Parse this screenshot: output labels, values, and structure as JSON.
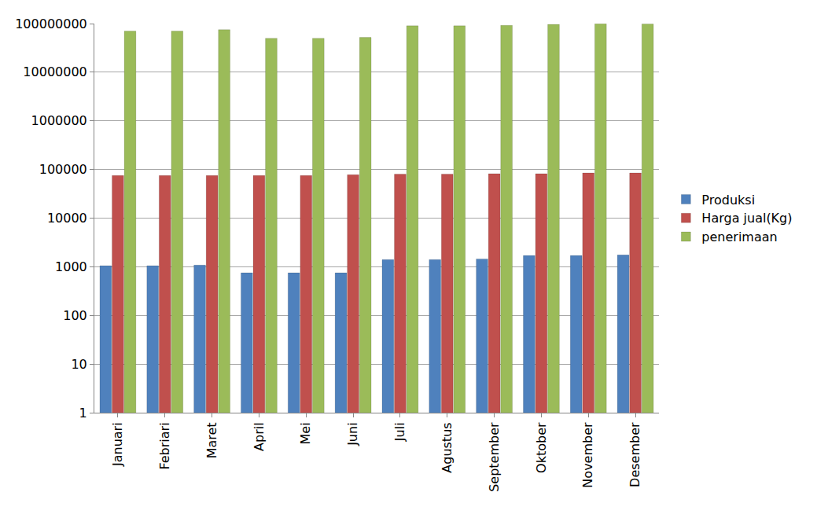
{
  "chart_data": {
    "type": "bar",
    "categories": [
      "Januari",
      "Febriari",
      "Maret",
      "April",
      "Mei",
      "Juni",
      "Juli",
      "Agustus",
      "September",
      "Oktober",
      "November",
      "Desember"
    ],
    "series": [
      {
        "name": "Produksi",
        "color": "#4f81bd",
        "values": [
          1050,
          1050,
          1080,
          750,
          750,
          750,
          1400,
          1400,
          1450,
          1700,
          1700,
          1750
        ]
      },
      {
        "name": "Harga jual(Kg)",
        "color": "#c0504d",
        "values": [
          75000,
          75000,
          75000,
          75000,
          75000,
          78000,
          80000,
          80000,
          82000,
          82000,
          85000,
          85000
        ]
      },
      {
        "name": "penerimaan",
        "color": "#9bbb59",
        "values": [
          70000000,
          70000000,
          75000000,
          50000000,
          50000000,
          52000000,
          90000000,
          90000000,
          92000000,
          96000000,
          99000000,
          98000000
        ]
      }
    ],
    "log": "y",
    "ylim": [
      1,
      100000000
    ],
    "yticks": [
      1,
      10,
      100,
      1000,
      10000,
      100000,
      1000000,
      10000000,
      100000000
    ],
    "grid": true,
    "legend": "right"
  }
}
